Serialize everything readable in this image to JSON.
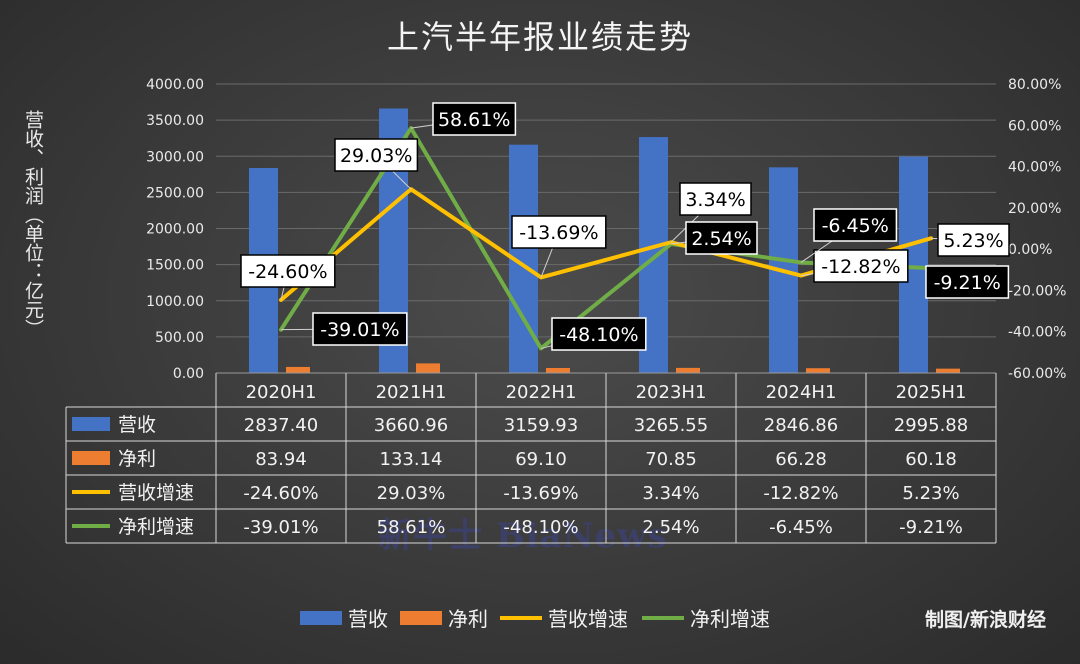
{
  "title": "上汽半年报业绩走势",
  "source": "制图/新浪财经",
  "watermark": "新牛士 BiaNews",
  "colors": {
    "revenue": "#4472C4",
    "profit": "#ED7D31",
    "revenue_growth": "#FFC000",
    "profit_growth": "#70AD47",
    "background": "#3a3a3a"
  },
  "chart_data": {
    "type": "bar",
    "combo": "bar+line",
    "title": "上汽半年报业绩走势",
    "ylabel": "营收、利润（单位：亿元）",
    "ylabel_right": "",
    "categories": [
      "2020H1",
      "2021H1",
      "2022H1",
      "2023H1",
      "2024H1",
      "2025H1"
    ],
    "ylim": [
      0,
      4000
    ],
    "y2lim": [
      -60,
      80
    ],
    "y_ticks": [
      "0.00",
      "500.00",
      "1000.00",
      "1500.00",
      "2000.00",
      "2500.00",
      "3000.00",
      "3500.00",
      "4000.00"
    ],
    "y2_ticks": [
      "-60.00%",
      "-40.00%",
      "-20.00%",
      "0.00%",
      "20.00%",
      "40.00%",
      "60.00%",
      "80.00%"
    ],
    "grid": true,
    "legend_position": "bottom",
    "series": [
      {
        "name": "营收",
        "type": "bar",
        "axis": "left",
        "values": [
          2837.4,
          3660.96,
          3159.93,
          3265.55,
          2846.86,
          2995.88
        ],
        "labels": [
          "2837.40",
          "3660.96",
          "3159.93",
          "3265.55",
          "2846.86",
          "2995.88"
        ]
      },
      {
        "name": "净利",
        "type": "bar",
        "axis": "left",
        "values": [
          83.94,
          133.14,
          69.1,
          70.85,
          66.28,
          60.18
        ],
        "labels": [
          "83.94",
          "133.14",
          "69.10",
          "70.85",
          "66.28",
          "60.18"
        ]
      },
      {
        "name": "营收增速",
        "type": "line",
        "axis": "right",
        "values": [
          -24.6,
          29.03,
          -13.69,
          3.34,
          -12.82,
          5.23
        ],
        "labels": [
          "-24.60%",
          "29.03%",
          "-13.69%",
          "3.34%",
          "-12.82%",
          "5.23%"
        ]
      },
      {
        "name": "净利增速",
        "type": "line",
        "axis": "right",
        "values": [
          -39.01,
          58.61,
          -48.1,
          2.54,
          -6.45,
          -9.21
        ],
        "labels": [
          "-39.01%",
          "58.61%",
          "-48.10%",
          "2.54%",
          "-6.45%",
          "-9.21%"
        ]
      }
    ]
  }
}
